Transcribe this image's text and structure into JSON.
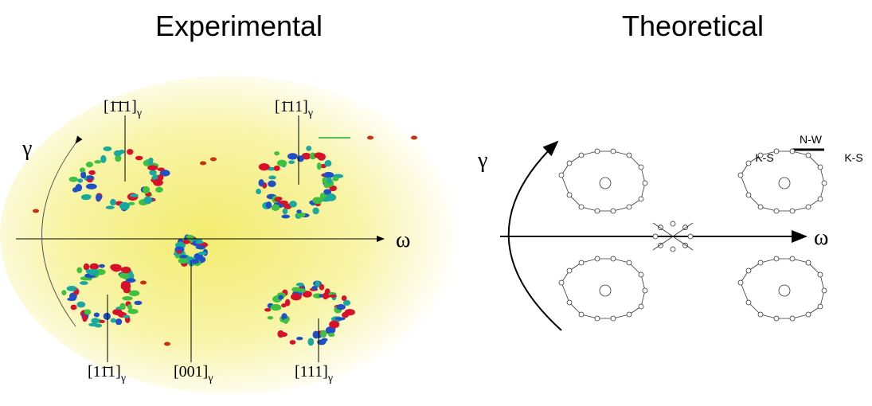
{
  "panels": [
    {
      "title": "Experimental",
      "axis_gamma": "γ",
      "axis_omega": "ω",
      "poles": [
        {
          "index": "[1̄1̄1]",
          "subscript": "γ"
        },
        {
          "index": "[1̄11]",
          "subscript": "γ"
        },
        {
          "index": "[11̄1]",
          "subscript": "γ"
        },
        {
          "index": "[001]",
          "subscript": "γ"
        },
        {
          "index": "[111]",
          "subscript": "γ"
        }
      ]
    },
    {
      "title": "Theoretical",
      "axis_gamma": "γ",
      "axis_omega": "ω",
      "labels": [
        "N-W",
        "K-S",
        "K-S"
      ]
    }
  ]
}
